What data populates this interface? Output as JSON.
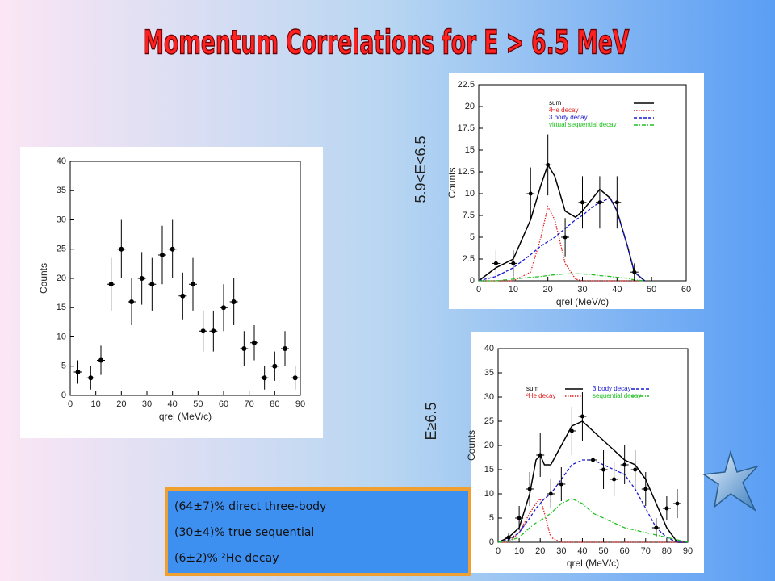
{
  "title": "Momentum Correlations for E > 6.5 MeV",
  "side_labels": [
    "5.9<E<6.5",
    "E≥6.5"
  ],
  "notes": [
    "(64±7)% direct three-body",
    "(30±4)%   true sequential",
    "(6±2)% ²He decay"
  ],
  "chart_data": [
    {
      "type": "scatter",
      "xlabel": "qrel (MeV/c)",
      "ylabel": "Counts",
      "xlim": [
        0,
        90
      ],
      "xticks": [
        0,
        10,
        20,
        30,
        40,
        50,
        60,
        70,
        80,
        90
      ],
      "ylim": [
        0,
        40
      ],
      "yticks": [
        0,
        5,
        10,
        15,
        20,
        25,
        30,
        35,
        40
      ],
      "points": {
        "x": [
          3,
          8,
          12,
          16,
          20,
          24,
          28,
          32,
          36,
          40,
          44,
          48,
          52,
          56,
          60,
          64,
          68,
          72,
          76,
          80,
          84,
          88
        ],
        "values": [
          4,
          3,
          6,
          19,
          25,
          16,
          20,
          19,
          24,
          25,
          17,
          19,
          11,
          11,
          15,
          16,
          8,
          9,
          3,
          5,
          8,
          3
        ],
        "errors": [
          2,
          2,
          2.5,
          4.5,
          5,
          4,
          4.5,
          4.5,
          5,
          5,
          4,
          4.5,
          3.5,
          3.5,
          4,
          4,
          3,
          3,
          2,
          2.5,
          3,
          2
        ]
      },
      "curve_x": [],
      "series": [],
      "legend_columns": 1
    },
    {
      "type": "scatter",
      "xlabel": "qrel (MeV/c)",
      "ylabel": "Counts",
      "xlim": [
        0,
        60
      ],
      "xticks": [
        0,
        10,
        20,
        30,
        40,
        50,
        60
      ],
      "ylim": [
        0,
        22.5
      ],
      "yticks": [
        0,
        2.5,
        5,
        7.5,
        10,
        12.5,
        15,
        17.5,
        20,
        22.5
      ],
      "points": {
        "x": [
          5,
          10,
          15,
          20,
          25,
          30,
          35,
          40,
          45
        ],
        "values": [
          2,
          2,
          10,
          13.3,
          5,
          9,
          9,
          9,
          1
        ],
        "errors": [
          1.5,
          1.5,
          3,
          3.5,
          2.2,
          3,
          3,
          3,
          1
        ]
      },
      "curve_x": [
        0,
        5,
        10,
        15,
        18,
        20,
        22,
        25,
        28,
        30,
        33,
        35,
        38,
        40,
        43,
        45,
        48
      ],
      "series": [
        {
          "name": "sum",
          "color": "#000000",
          "style": "solid",
          "values": [
            0,
            1.5,
            2.5,
            7,
            11,
            13.3,
            12,
            8,
            7.3,
            8,
            9.5,
            10.5,
            9.5,
            8,
            4,
            1,
            0
          ]
        },
        {
          "name": "²He decay",
          "color": "#e02020",
          "style": "dotted",
          "values": [
            0,
            0,
            0,
            1,
            5,
            8.5,
            7,
            2,
            0.2,
            0,
            0,
            0,
            0,
            0,
            0,
            0,
            0
          ]
        },
        {
          "name": "3 body decay",
          "color": "#1a1ad0",
          "style": "dashed",
          "values": [
            0,
            0.5,
            1.5,
            3,
            4,
            4.5,
            5,
            6,
            7,
            7.5,
            8.5,
            9,
            9.5,
            8,
            4,
            1,
            0
          ]
        },
        {
          "name": "virtual sequential decay",
          "color": "#20c020",
          "style": "dashdot",
          "values": [
            0,
            0,
            0.2,
            0.4,
            0.5,
            0.6,
            0.7,
            0.8,
            0.8,
            0.8,
            0.7,
            0.6,
            0.5,
            0.4,
            0.3,
            0.1,
            0
          ]
        }
      ],
      "legend_columns": 1
    },
    {
      "type": "scatter",
      "xlabel": "qrel (MeV/c)",
      "ylabel": "Counts",
      "xlim": [
        0,
        90
      ],
      "xticks": [
        0,
        10,
        20,
        30,
        40,
        50,
        60,
        70,
        80,
        90
      ],
      "ylim": [
        0,
        40
      ],
      "yticks": [
        0,
        5,
        10,
        15,
        20,
        25,
        30,
        35,
        40
      ],
      "points": {
        "x": [
          5,
          10,
          15,
          20,
          25,
          30,
          35,
          40,
          45,
          50,
          55,
          60,
          65,
          70,
          75,
          80,
          85
        ],
        "values": [
          1,
          5,
          11,
          18,
          10,
          12,
          23,
          26,
          17,
          15,
          13,
          16,
          15,
          11,
          3,
          7,
          8
        ],
        "errors": [
          1,
          2.5,
          3.5,
          4.5,
          3,
          3.5,
          5,
          5,
          4,
          4,
          3.5,
          4,
          4,
          3.5,
          2,
          2.5,
          3
        ]
      },
      "curve_x": [
        0,
        5,
        10,
        15,
        18,
        20,
        22,
        25,
        30,
        35,
        40,
        45,
        50,
        55,
        60,
        65,
        70,
        75,
        80,
        85,
        90
      ],
      "series": [
        {
          "name": "sum",
          "color": "#000000",
          "style": "solid",
          "values": [
            0,
            1,
            3,
            10,
            17,
            18,
            16,
            16,
            20,
            24,
            25,
            23,
            21,
            19,
            17,
            16,
            13,
            8,
            3,
            0,
            0
          ]
        },
        {
          "name": "²He decay",
          "color": "#e02020",
          "style": "dotted",
          "values": [
            0,
            0,
            2,
            6,
            8,
            9,
            6,
            1,
            0,
            0,
            0,
            0,
            0,
            0,
            0,
            0,
            0,
            0,
            0,
            0,
            0
          ]
        },
        {
          "name": "3 body decay",
          "color": "#1a1ad0",
          "style": "dashed",
          "values": [
            0,
            0.5,
            2,
            5,
            7,
            8,
            9,
            10,
            13,
            16,
            17,
            17,
            16,
            15,
            14,
            11,
            7,
            3,
            1,
            0,
            0
          ]
        },
        {
          "name": "sequential decay",
          "color": "#20c020",
          "style": "dashdot",
          "values": [
            0,
            0.3,
            1,
            3,
            4,
            4.5,
            5,
            6,
            8,
            9,
            8,
            6,
            5,
            4,
            3,
            2.5,
            2,
            1.5,
            1,
            0.5,
            0
          ]
        }
      ],
      "legend_columns": 2
    }
  ]
}
